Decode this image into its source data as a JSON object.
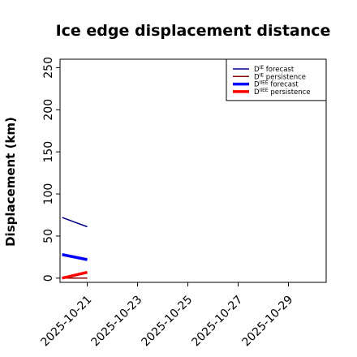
{
  "chart_data": {
    "type": "line",
    "title": "Ice edge displacement distance",
    "xlabel": "",
    "ylabel": "Displacement (km)",
    "ylim": [
      -5,
      260
    ],
    "xlim": [
      "2025-10-19T22:00",
      "2025-10-30T12:00"
    ],
    "x_ticks": [
      "2025-10-21",
      "2025-10-23",
      "2025-10-25",
      "2025-10-27",
      "2025-10-29"
    ],
    "x_tick_highlight": {
      "label": "2025-10-21",
      "color": "#2ca02c"
    },
    "y_ticks": [
      0,
      50,
      100,
      150,
      200,
      250
    ],
    "grid": false,
    "legend": "top-right",
    "series": [
      {
        "name": "DIE forecast",
        "base": "D",
        "sup": "IE",
        "suffix": " forecast",
        "color": "#00008b",
        "width": 1.5,
        "x": [
          "2025-10-20",
          "2025-10-21"
        ],
        "y": [
          72,
          61
        ]
      },
      {
        "name": "DIE persistence",
        "base": "D",
        "sup": "IE",
        "suffix": " persistence",
        "color": "#8b0000",
        "width": 1.5,
        "x": [
          "2025-10-20",
          "2025-10-21"
        ],
        "y": [
          0,
          0
        ]
      },
      {
        "name": "DIIEE forecast",
        "base": "D",
        "sup": "IIEE",
        "suffix": " forecast",
        "color": "#0000ff",
        "width": 3.5,
        "x": [
          "2025-10-20",
          "2025-10-21"
        ],
        "y": [
          28,
          22
        ]
      },
      {
        "name": "DIIEE persistence",
        "base": "D",
        "sup": "IIEE",
        "suffix": " persistence",
        "color": "#ff0000",
        "width": 3.5,
        "x": [
          "2025-10-20",
          "2025-10-21"
        ],
        "y": [
          0,
          7
        ]
      }
    ]
  }
}
